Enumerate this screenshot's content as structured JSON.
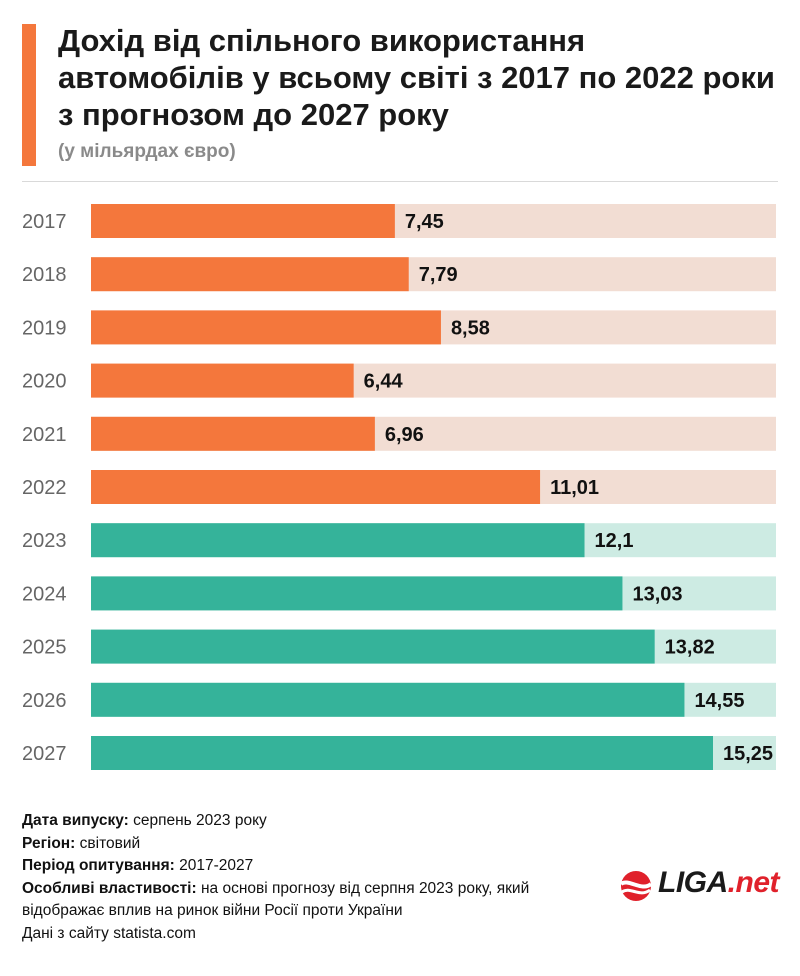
{
  "title": "Дохід від спільного використання автомобілів у всьому світі з 2017 по 2022 роки з прогнозом до 2027 року",
  "subtitle": "(у мільярдах євро)",
  "chart_data": {
    "type": "bar",
    "orientation": "horizontal",
    "title": "Дохід від спільного використання автомобілів у всьому світі з 2017 по 2022 роки з прогнозом до 2027 року",
    "ylabel": "(у мільярдах євро)",
    "xlabel": "",
    "categories": [
      "2017",
      "2018",
      "2019",
      "2020",
      "2021",
      "2022",
      "2023",
      "2024",
      "2025",
      "2026",
      "2027"
    ],
    "values": [
      7.45,
      7.79,
      8.58,
      6.44,
      6.96,
      11.01,
      12.1,
      13.03,
      13.82,
      14.55,
      15.25
    ],
    "value_labels": [
      "7,45",
      "7,79",
      "8,58",
      "6,44",
      "6,96",
      "11,01",
      "12,1",
      "13,03",
      "13,82",
      "14,55",
      "15,25"
    ],
    "groups": [
      "actual",
      "actual",
      "actual",
      "actual",
      "actual",
      "actual",
      "forecast",
      "forecast",
      "forecast",
      "forecast",
      "forecast"
    ],
    "xlim": [
      0,
      15.25
    ],
    "colors": {
      "actual": "#f4773c",
      "actual_track": "#f2ddd3",
      "forecast": "#35b39a",
      "forecast_track": "#cdebe3"
    }
  },
  "notes": {
    "release_label": "Дата випуску:",
    "release_value": " серпень 2023 року",
    "region_label": "Регіон:",
    "region_value": " світовий",
    "period_label": "Період опитування:",
    "period_value": " 2017-2027",
    "features_label": "Особливі властивості:",
    "features_value": " на основі прогнозу від серпня 2023 року, який відображає вплив на ринок війни Росії проти України",
    "source": "Дані з сайту statista.com"
  },
  "logo": {
    "brand": "LIGA",
    "suffix": ".net",
    "brand_color": "#e0212b"
  }
}
